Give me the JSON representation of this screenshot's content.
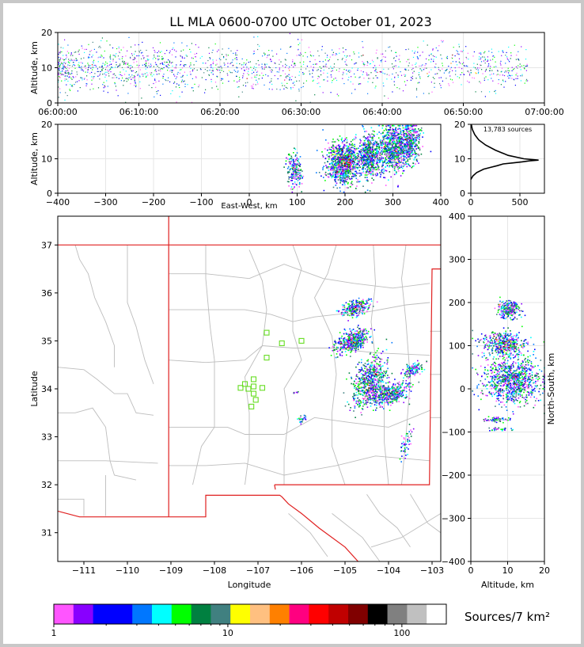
{
  "title": "LL MLA 0600-0700 UTC October 01, 2023",
  "colors": {
    "frame": "#c8c8c8",
    "state_border": "#e02020",
    "county_line": "#bdbdbd",
    "station_marker": "#66dd22",
    "grid": "#e6e6e6"
  },
  "chart_data": [
    {
      "id": "time_altitude",
      "type": "scatter",
      "ylabel": "Altitude, km",
      "xlabel": "",
      "xlim": [
        "06:00:00",
        "07:00:00"
      ],
      "ylim": [
        0,
        20
      ],
      "x_ticks": [
        "06:00:00",
        "06:10:00",
        "06:20:00",
        "06:30:00",
        "06:40:00",
        "06:50:00",
        "07:00:00"
      ],
      "y_ticks": [
        0,
        10,
        20
      ],
      "grid": true
    },
    {
      "id": "ew_altitude",
      "type": "scatter",
      "xlabel": "East-West, km",
      "ylabel": "Altitude, km",
      "xlim": [
        -400,
        400
      ],
      "ylim": [
        0,
        20
      ],
      "x_ticks": [
        -400,
        -300,
        -200,
        -100,
        0,
        100,
        200,
        300,
        400
      ],
      "y_ticks": [
        0,
        10,
        20
      ],
      "grid": true,
      "clusters": [
        {
          "x": 90,
          "z": 7,
          "sx": 8,
          "sz": 2.5,
          "n": 150,
          "hot": 0.05
        },
        {
          "x": 105,
          "z": 6,
          "sx": 3,
          "sz": 2,
          "n": 30,
          "hot": 0
        },
        {
          "x": 195,
          "z": 9,
          "sx": 18,
          "sz": 3,
          "n": 900,
          "hot": 0.25
        },
        {
          "x": 250,
          "z": 11,
          "sx": 12,
          "sz": 3,
          "n": 550,
          "hot": 0.15
        },
        {
          "x": 300,
          "z": 13,
          "sx": 15,
          "sz": 3.5,
          "n": 700,
          "hot": 0.06
        },
        {
          "x": 335,
          "z": 15,
          "sx": 10,
          "sz": 3,
          "n": 400,
          "hot": 0.02
        }
      ]
    },
    {
      "id": "altitude_histogram",
      "type": "line",
      "annotation": "13,783 sources",
      "xlim": [
        0,
        750
      ],
      "ylim": [
        0,
        20
      ],
      "x_ticks": [
        0,
        500
      ],
      "y_ticks": [
        0,
        10,
        20
      ],
      "grid": true,
      "x": [
        0,
        20,
        60,
        130,
        200,
        270,
        330,
        430,
        520,
        600,
        690,
        540,
        380,
        250,
        150,
        80,
        40,
        15,
        5
      ],
      "y": [
        4,
        5,
        6,
        7,
        7.5,
        8,
        8.5,
        8.8,
        9.1,
        9.4,
        9.6,
        10,
        11,
        12.5,
        14,
        15.5,
        17,
        18.5,
        20
      ]
    },
    {
      "id": "plan_view",
      "type": "scatter",
      "xlabel": "Longitude",
      "ylabel": "Latitude",
      "xlim": [
        -111.6,
        -102.8
      ],
      "ylim": [
        30.4,
        37.6
      ],
      "x_ticks": [
        -111,
        -110,
        -109,
        -108,
        -107,
        -106,
        -105,
        -104,
        -103
      ],
      "y_ticks": [
        31,
        32,
        33,
        34,
        35,
        36,
        37
      ],
      "clusters": [
        {
          "lon": -104.75,
          "lat": 35.7,
          "sx": 0.15,
          "sy": 0.09,
          "n": 250,
          "hot": 0.2
        },
        {
          "lon": -104.85,
          "lat": 35.0,
          "sx": 0.17,
          "sy": 0.12,
          "n": 450,
          "hot": 0.2
        },
        {
          "lon": -104.45,
          "lat": 34.15,
          "sx": 0.18,
          "sy": 0.25,
          "n": 600,
          "hot": 0.12
        },
        {
          "lon": -104.0,
          "lat": 33.9,
          "sx": 0.2,
          "sy": 0.12,
          "n": 400,
          "hot": 0.04
        },
        {
          "lon": -103.45,
          "lat": 34.42,
          "sx": 0.1,
          "sy": 0.07,
          "n": 120,
          "hot": 0.05
        },
        {
          "lon": -103.6,
          "lat": 32.9,
          "sx": 0.06,
          "sy": 0.15,
          "n": 50,
          "hot": 0
        },
        {
          "lon": -106.0,
          "lat": 33.38,
          "sx": 0.05,
          "sy": 0.04,
          "n": 25,
          "hot": 0
        },
        {
          "lon": -106.15,
          "lat": 33.95,
          "sx": 0.03,
          "sy": 0.02,
          "n": 8,
          "hot": 0
        }
      ],
      "stations": [
        {
          "lon": -106.8,
          "lat": 35.17
        },
        {
          "lon": -106.45,
          "lat": 34.95
        },
        {
          "lon": -106.0,
          "lat": 35.0
        },
        {
          "lon": -106.8,
          "lat": 34.65
        },
        {
          "lon": -107.1,
          "lat": 34.2
        },
        {
          "lon": -107.3,
          "lat": 34.1
        },
        {
          "lon": -107.1,
          "lat": 34.05
        },
        {
          "lon": -107.4,
          "lat": 34.02
        },
        {
          "lon": -107.22,
          "lat": 34.0
        },
        {
          "lon": -106.9,
          "lat": 34.02
        },
        {
          "lon": -107.1,
          "lat": 33.9
        },
        {
          "lon": -107.05,
          "lat": 33.77
        },
        {
          "lon": -107.15,
          "lat": 33.63
        }
      ]
    },
    {
      "id": "altitude_northsouth",
      "type": "scatter",
      "xlabel": "Altitude, km",
      "ylabel": "North-South, km",
      "xlim": [
        0,
        20
      ],
      "ylim": [
        -400,
        400
      ],
      "x_ticks": [
        0,
        10,
        20
      ],
      "y_ticks": [
        -400,
        -300,
        -200,
        -100,
        0,
        100,
        200,
        300,
        400
      ],
      "grid": true,
      "clusters": [
        {
          "z": 10,
          "y": 185,
          "sx": 1.5,
          "sy": 10,
          "n": 250,
          "hot": 0.05
        },
        {
          "z": 9,
          "y": 105,
          "sx": 3,
          "sy": 15,
          "n": 450,
          "hot": 0.2
        },
        {
          "z": 11,
          "y": 20,
          "sx": 4,
          "sy": 25,
          "n": 900,
          "hot": 0.08
        },
        {
          "z": 7,
          "y": -70,
          "sx": 2,
          "sy": 3,
          "n": 60,
          "hot": 0
        },
        {
          "z": 8,
          "y": -92,
          "sx": 2,
          "sy": 2,
          "n": 30,
          "hot": 0
        }
      ]
    }
  ],
  "colorbar": {
    "label": "Sources/7 km²",
    "ticks": [
      {
        "value": 1,
        "label": "1"
      },
      {
        "value": 10,
        "label": "10"
      },
      {
        "value": 100,
        "label": "100"
      }
    ],
    "colors": [
      "#ff55ff",
      "#8800ff",
      "#0000ff",
      "#0000ff",
      "#0077ff",
      "#00ffff",
      "#00ff00",
      "#008040",
      "#408080",
      "#ffff00",
      "#ffc080",
      "#ff8000",
      "#ff0080",
      "#ff0000",
      "#c00000",
      "#800000",
      "#000000",
      "#808080",
      "#c0c0c0",
      "#ffffff"
    ]
  }
}
